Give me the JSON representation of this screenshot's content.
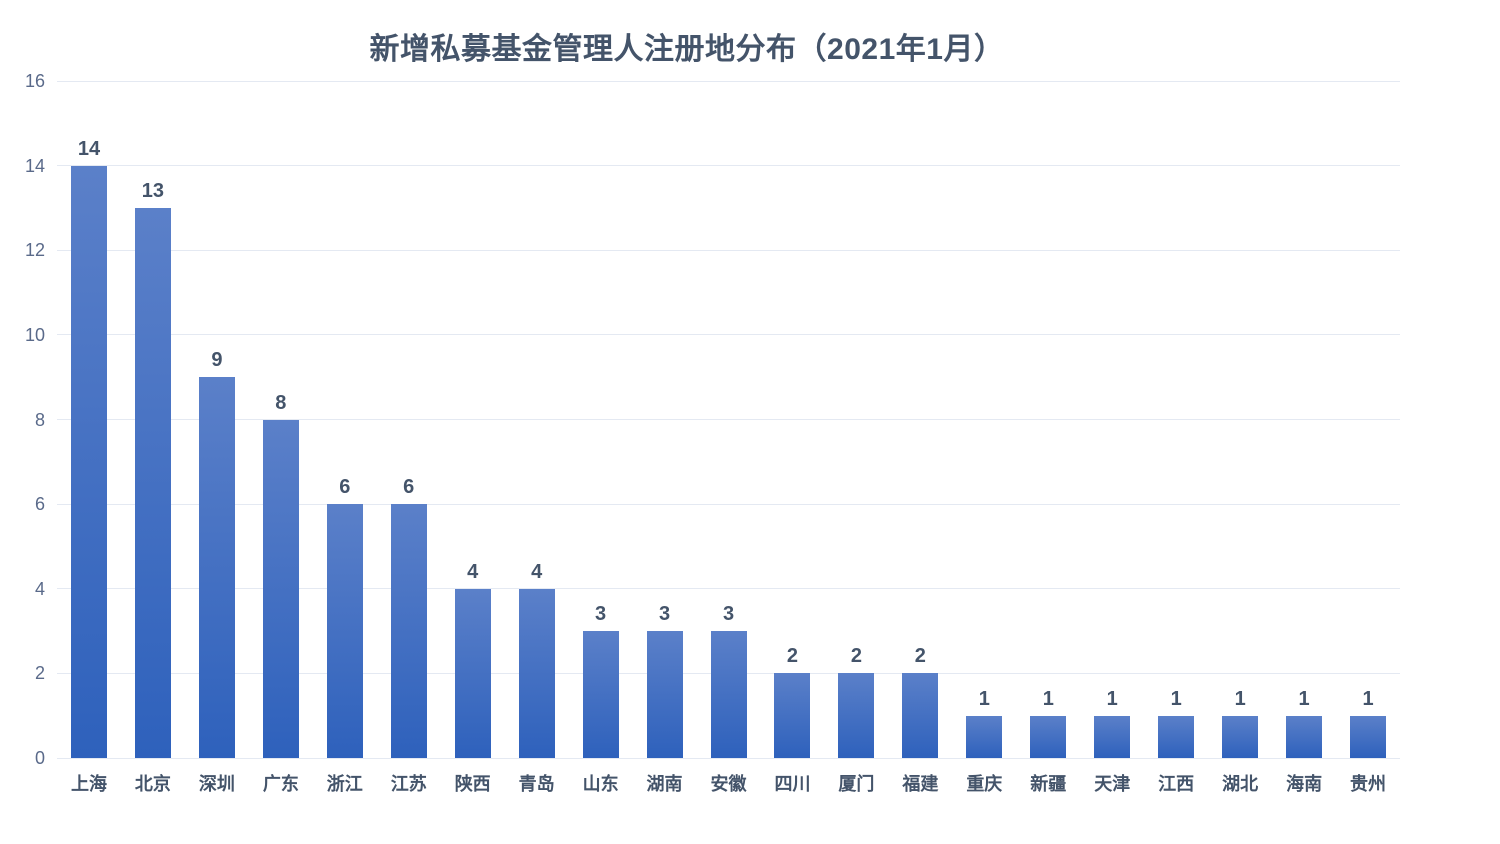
{
  "chart_data": {
    "type": "bar",
    "title": "新增私募基金管理人注册地分布（2021年1月）",
    "categories": [
      "上海",
      "北京",
      "深圳",
      "广东",
      "浙江",
      "江苏",
      "陕西",
      "青岛",
      "山东",
      "湖南",
      "安徽",
      "四川",
      "厦门",
      "福建",
      "重庆",
      "新疆",
      "天津",
      "江西",
      "湖北",
      "海南",
      "贵州"
    ],
    "values": [
      14,
      13,
      9,
      8,
      6,
      6,
      4,
      4,
      3,
      3,
      3,
      2,
      2,
      2,
      1,
      1,
      1,
      1,
      1,
      1,
      1
    ],
    "xlabel": "",
    "ylabel": "",
    "ylim": [
      0,
      16
    ],
    "yticks": [
      0,
      2,
      4,
      6,
      8,
      10,
      12,
      14,
      16
    ],
    "grid": true,
    "legend_position": "none",
    "colors": {
      "bar_gradient_top": "#5B80C9",
      "bar_gradient_bottom": "#2E61BC",
      "title": "#44546A",
      "data_label": "#44546A",
      "category_label": "#44546A",
      "tick_label": "#5A6A8A",
      "gridline": "#E4E9F2",
      "background": "#FFFFFF"
    }
  }
}
